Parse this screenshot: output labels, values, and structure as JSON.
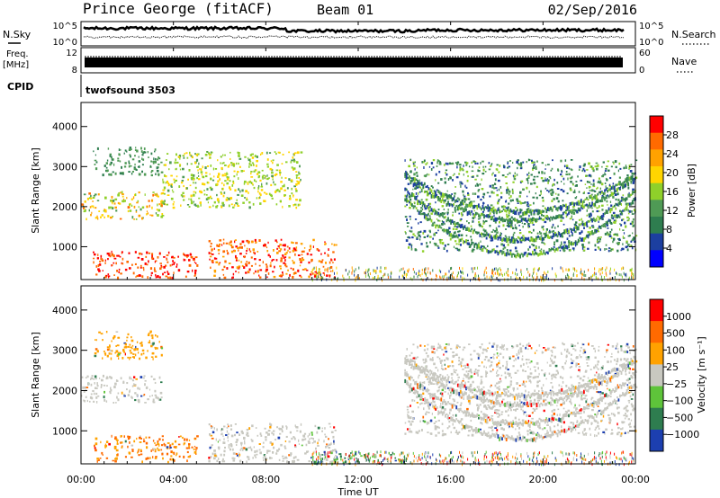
{
  "header": {
    "station": "Prince George (fitACF)",
    "beam": "Beam 01",
    "date": "02/Sep/2016"
  },
  "noise_panel": {
    "left_label": "N.Sky",
    "right_label": "N.Search",
    "left_ticks": [
      "10^5",
      "10^0"
    ],
    "right_ticks": [
      "10^5",
      "10^0"
    ]
  },
  "freq_panel": {
    "left_label_1": "Freq.",
    "left_label_2": "[MHz]",
    "right_label": "Nave",
    "left_ticks": [
      "12",
      "8"
    ],
    "right_ticks": [
      "60",
      "0"
    ]
  },
  "cpid": {
    "label": "CPID",
    "value": "twofsound 3503"
  },
  "colors": {
    "power": [
      "#0000ff",
      "#1c3fa0",
      "#2e7d4f",
      "#4f9a55",
      "#8fd02a",
      "#ffd500",
      "#ffa200",
      "#ff6a00",
      "#ff0000"
    ],
    "velocity": [
      "#1c3fb0",
      "#2e7d4f",
      "#5ec43a",
      "#c8c8c0",
      "#ffa200",
      "#ff6a00",
      "#ff0000"
    ]
  },
  "chart_data": [
    {
      "type": "heatmap",
      "parameter": "Power",
      "ylabel": "Slant Range [km]",
      "xlabel": "",
      "x_ticks": [
        "00:00",
        "04:00",
        "08:00",
        "12:00",
        "16:00",
        "20:00",
        "00:00"
      ],
      "x_range_hours": [
        0,
        24
      ],
      "y_range_km": [
        180,
        4600
      ],
      "y_ticks": [
        1000,
        2000,
        3000,
        4000
      ],
      "colorbar": {
        "label": "Power [dB]",
        "ticks": [
          4,
          8,
          12,
          16,
          20,
          24,
          28
        ],
        "range": [
          0,
          30
        ]
      },
      "features": [
        {
          "hours": [
            0,
            3.5
          ],
          "range_km": [
            1700,
            2400
          ],
          "level": "mixed 12-24 dB"
        },
        {
          "hours": [
            0.5,
            3.5
          ],
          "range_km": [
            2800,
            3500
          ],
          "level": "8-12 dB"
        },
        {
          "hours": [
            3.5,
            9.5
          ],
          "range_km": [
            2000,
            3400
          ],
          "level": "12-20 dB"
        },
        {
          "hours": [
            0.5,
            5.0
          ],
          "range_km": [
            250,
            900
          ],
          "level": "24-30 dB"
        },
        {
          "hours": [
            5.5,
            11.0
          ],
          "range_km": [
            250,
            1200
          ],
          "level": "20-30 dB"
        },
        {
          "hours": [
            14.0,
            24.0
          ],
          "range_km": [
            900,
            3200
          ],
          "level": "4-16 dB"
        }
      ]
    },
    {
      "type": "heatmap",
      "parameter": "Velocity",
      "ylabel": "Slant Range [km]",
      "xlabel": "Time UT",
      "x_ticks": [
        "00:00",
        "04:00",
        "08:00",
        "12:00",
        "16:00",
        "20:00",
        "00:00"
      ],
      "x_range_hours": [
        0,
        24
      ],
      "y_range_km": [
        180,
        4600
      ],
      "y_ticks": [
        1000,
        2000,
        3000,
        4000
      ],
      "colorbar": {
        "label": "Velocity [m s⁻¹]",
        "ticks": [
          "1000",
          "500",
          "100",
          "25",
          "−25",
          "−100",
          "−500",
          "−1000"
        ]
      },
      "features": [
        {
          "hours": [
            0,
            3.5
          ],
          "range_km": [
            1700,
            2400
          ],
          "level": "-25..25 m/s"
        },
        {
          "hours": [
            0.5,
            3.5
          ],
          "range_km": [
            2800,
            3500
          ],
          "level": "-100..-25 m/s"
        },
        {
          "hours": [
            0.5,
            5.0
          ],
          "range_km": [
            250,
            900
          ],
          "level": "-500..-100 m/s"
        },
        {
          "hours": [
            5.5,
            11.0
          ],
          "range_km": [
            250,
            1200
          ],
          "level": "-25..25 m/s"
        },
        {
          "hours": [
            10.0,
            14.0
          ],
          "range_km": [
            200,
            500
          ],
          "level": "25..500 m/s"
        },
        {
          "hours": [
            14.0,
            24.0
          ],
          "range_km": [
            900,
            3200
          ],
          "level": "-25..25 m/s"
        }
      ]
    }
  ]
}
